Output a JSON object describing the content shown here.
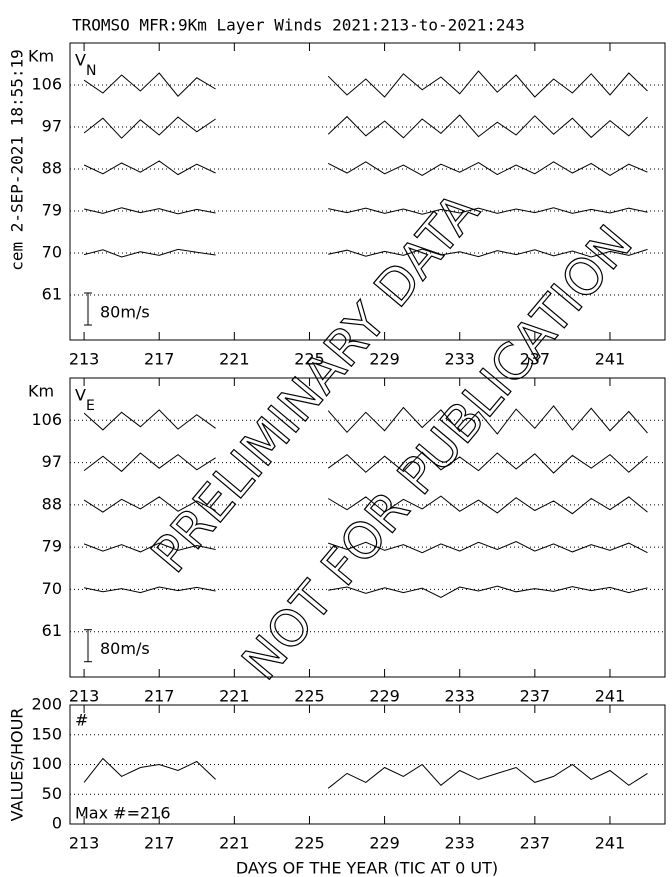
{
  "title": "TROMSO MFR:9Km Layer Winds 2021:213-to-2021:243",
  "timestamp": "cem 2-SEP-2021 18:55:19",
  "watermark": [
    "PRELIMINARY DATA",
    "NOT FOR PUBLICATION"
  ],
  "chart_data": [
    {
      "type": "line",
      "ylabel": "Km",
      "panel_label": "V",
      "panel_sub": "N",
      "scale_label": "80m/s",
      "color": "#000000",
      "grid": true,
      "x": [
        213,
        214,
        215,
        216,
        217,
        218,
        219,
        220,
        221,
        222,
        223,
        224,
        225,
        226,
        227,
        228,
        229,
        230,
        231,
        232,
        233,
        234,
        235,
        236,
        237,
        238,
        239,
        240,
        241,
        242,
        243
      ],
      "xlim": [
        212.25,
        243.93
      ],
      "xticks": [
        213,
        217,
        221,
        225,
        229,
        233,
        237,
        241
      ],
      "ylim": [
        51.36,
        115
      ],
      "yticks": [
        61,
        70,
        79,
        88,
        97,
        106
      ],
      "series": [
        {
          "values": [
            12,
            -20,
            25,
            -15,
            30,
            -28,
            18,
            -10,
            null,
            null,
            null,
            null,
            null,
            22,
            -25,
            15,
            -30,
            28,
            -12,
            20,
            -22,
            35,
            -18,
            25,
            -30,
            15,
            -20,
            28,
            -25,
            30,
            -15
          ]
        },
        {
          "values": [
            -15,
            22,
            -28,
            18,
            -20,
            25,
            -12,
            20,
            null,
            null,
            null,
            null,
            null,
            -18,
            26,
            -22,
            15,
            -27,
            20,
            -16,
            30,
            -24,
            12,
            -20,
            28,
            -18,
            22,
            -26,
            16,
            -22,
            25
          ]
        },
        {
          "values": [
            10,
            -12,
            15,
            -8,
            20,
            -14,
            12,
            -10,
            null,
            null,
            null,
            null,
            null,
            14,
            -10,
            18,
            -12,
            10,
            -16,
            12,
            -8,
            16,
            -14,
            10,
            -12,
            18,
            -10,
            14,
            -16,
            12,
            -8
          ]
        },
        {
          "values": [
            5,
            -6,
            8,
            -4,
            6,
            -7,
            4,
            -5,
            null,
            null,
            null,
            null,
            null,
            6,
            -4,
            7,
            -6,
            5,
            -8,
            4,
            -5,
            7,
            -6,
            5,
            -4,
            8,
            -6,
            4,
            -5,
            7,
            -3
          ]
        },
        {
          "values": [
            -4,
            8,
            -10,
            3,
            -6,
            9,
            2,
            -5,
            null,
            null,
            null,
            null,
            null,
            -3,
            7,
            -8,
            4,
            -6,
            10,
            -5,
            3,
            -9,
            6,
            -4,
            8,
            -7,
            5,
            -10,
            4,
            -6,
            9
          ]
        }
      ]
    },
    {
      "type": "line",
      "ylabel": "Km",
      "panel_label": "V",
      "panel_sub": "E",
      "scale_label": "80m/s",
      "color": "#000000",
      "grid": true,
      "x": [
        213,
        214,
        215,
        216,
        217,
        218,
        219,
        220,
        221,
        222,
        223,
        224,
        225,
        226,
        227,
        228,
        229,
        230,
        231,
        232,
        233,
        234,
        235,
        236,
        237,
        238,
        239,
        240,
        241,
        242,
        243
      ],
      "xlim": [
        212.25,
        243.93
      ],
      "xticks": [
        213,
        217,
        221,
        225,
        229,
        233,
        237,
        241
      ],
      "ylim": [
        51.36,
        115
      ],
      "yticks": [
        61,
        70,
        79,
        88,
        97,
        106
      ],
      "series": [
        {
          "values": [
            18,
            -24,
            20,
            -16,
            26,
            -22,
            14,
            -20,
            null,
            null,
            null,
            null,
            null,
            24,
            -30,
            20,
            -26,
            32,
            -18,
            26,
            -28,
            22,
            -34,
            28,
            -20,
            36,
            -24,
            30,
            -26,
            22,
            -32
          ]
        },
        {
          "values": [
            -20,
            16,
            -22,
            24,
            -14,
            20,
            -18,
            12,
            null,
            null,
            null,
            null,
            null,
            -14,
            20,
            -24,
            16,
            -22,
            26,
            -18,
            14,
            -20,
            24,
            -16,
            22,
            -26,
            18,
            -14,
            20,
            -24,
            16
          ]
        },
        {
          "values": [
            12,
            -18,
            14,
            -10,
            20,
            -16,
            10,
            -14,
            null,
            null,
            null,
            null,
            null,
            16,
            -12,
            20,
            -18,
            14,
            -10,
            22,
            -16,
            12,
            -20,
            18,
            -14,
            10,
            -22,
            16,
            -12,
            20,
            -18
          ]
        },
        {
          "values": [
            8,
            -10,
            6,
            -12,
            10,
            -8,
            4,
            -6,
            null,
            null,
            null,
            null,
            null,
            10,
            -6,
            12,
            -8,
            6,
            -14,
            8,
            -10,
            12,
            -6,
            14,
            -10,
            8,
            -12,
            6,
            -8,
            10,
            -14
          ]
        },
        {
          "values": [
            4,
            -6,
            2,
            -8,
            6,
            -3,
            5,
            -4,
            null,
            null,
            null,
            null,
            null,
            -2,
            6,
            -10,
            4,
            -8,
            3,
            -20,
            6,
            -4,
            8,
            -6,
            2,
            -5,
            7,
            -3,
            5,
            -8,
            4
          ]
        }
      ]
    },
    {
      "type": "line",
      "ylabel": "VALUES/HOUR",
      "panel_label": "#",
      "note": "Max #=216",
      "xlabel": "DAYS OF THE YEAR (TIC AT 0 UT)",
      "color": "#000000",
      "grid": true,
      "x": [
        213,
        214,
        215,
        216,
        217,
        218,
        219,
        220,
        221,
        222,
        223,
        224,
        225,
        226,
        227,
        228,
        229,
        230,
        231,
        232,
        233,
        234,
        235,
        236,
        237,
        238,
        239,
        240,
        241,
        242,
        243
      ],
      "xlim": [
        212.25,
        243.93
      ],
      "xticks": [
        213,
        217,
        221,
        225,
        229,
        233,
        237,
        241
      ],
      "ylim": [
        0,
        200
      ],
      "yticks": [
        0,
        50,
        100,
        150,
        200
      ],
      "series": [
        {
          "values": [
            70,
            110,
            80,
            95,
            100,
            90,
            105,
            75,
            null,
            null,
            null,
            null,
            null,
            60,
            85,
            70,
            95,
            80,
            100,
            65,
            90,
            75,
            85,
            95,
            70,
            80,
            100,
            75,
            90,
            65,
            85
          ]
        }
      ]
    }
  ]
}
